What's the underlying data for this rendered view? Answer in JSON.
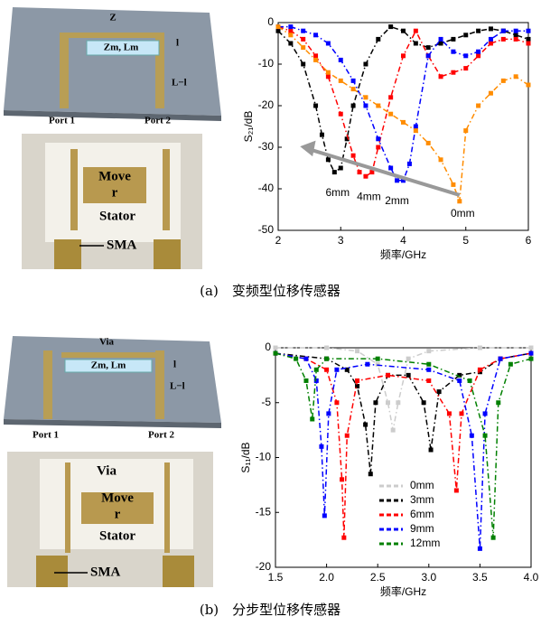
{
  "panels": [
    {
      "layout_labels": [
        "Z",
        "Zm, Lm",
        "l",
        "L−l",
        "Port 1",
        "Port 2"
      ],
      "photo_labels": [
        "Move",
        "r",
        "Stator",
        "SMA"
      ]
    },
    {
      "layout_labels": [
        "Via",
        "Zm, Lm",
        "l",
        "L−l",
        "Port 1",
        "Port 2"
      ],
      "photo_labels": [
        "Via",
        "Move",
        "r",
        "Stator",
        "SMA"
      ]
    }
  ],
  "captions": [
    "(a)　变频型位移传感器",
    "(b)　分步型位移传感器"
  ],
  "chart_data": [
    {
      "type": "line",
      "xlabel": "频率/GHz",
      "ylabel": "S₂₁/dB",
      "xlim": [
        2,
        6
      ],
      "ylim": [
        -50,
        0
      ],
      "xticks": [
        2,
        3,
        4,
        5,
        6
      ],
      "yticks": [
        0,
        -10,
        -20,
        -30,
        -40,
        -50
      ],
      "frame": true,
      "legend": false,
      "markers": "square",
      "line_style": "dash-dot",
      "annotations": [
        "6mm",
        "4mm",
        "2mm",
        "0mm"
      ],
      "series": [
        {
          "color": "#000000",
          "x": [
            2,
            2.2,
            2.4,
            2.6,
            2.7,
            2.8,
            2.9,
            3.0,
            3.1,
            3.2,
            3.4,
            3.6,
            3.8,
            4.0,
            4.2,
            4.4,
            4.6,
            4.8,
            5.0,
            5.2,
            5.4,
            5.6,
            5.8,
            6.0
          ],
          "values": [
            -2,
            -5,
            -10,
            -20,
            -27,
            -33,
            -36,
            -35,
            -28,
            -20,
            -10,
            -4,
            -1,
            -2,
            -5,
            -6,
            -5,
            -4,
            -3,
            -2,
            -1.5,
            -2,
            -3,
            -4
          ]
        },
        {
          "color": "#ff0000",
          "x": [
            2,
            2.2,
            2.4,
            2.6,
            2.8,
            3.0,
            3.2,
            3.3,
            3.4,
            3.5,
            3.6,
            3.8,
            4.0,
            4.2,
            4.4,
            4.6,
            4.8,
            5.0,
            5.2,
            5.4,
            5.6,
            5.8,
            6.0
          ],
          "values": [
            -1,
            -2,
            -4,
            -8,
            -13,
            -22,
            -32,
            -36,
            -37,
            -36,
            -30,
            -18,
            -8,
            -2,
            -8,
            -13,
            -12,
            -11,
            -8,
            -5,
            -4,
            -4,
            -5
          ]
        },
        {
          "color": "#0000ff",
          "x": [
            2,
            2.2,
            2.4,
            2.6,
            2.8,
            3.0,
            3.2,
            3.4,
            3.6,
            3.8,
            3.9,
            4.0,
            4.1,
            4.2,
            4.4,
            4.6,
            4.8,
            5.0,
            5.2,
            5.4,
            5.6,
            5.8,
            6.0
          ],
          "values": [
            -1,
            -1,
            -2,
            -3,
            -5,
            -9,
            -14,
            -20,
            -28,
            -35,
            -38,
            -38,
            -34,
            -25,
            -8,
            -4,
            -7,
            -8,
            -7,
            -4,
            -2,
            -2,
            -2
          ]
        },
        {
          "color": "#ff8c00",
          "x": [
            2,
            2.2,
            2.4,
            2.6,
            2.8,
            3.0,
            3.2,
            3.4,
            3.6,
            3.8,
            4.0,
            4.2,
            4.4,
            4.6,
            4.8,
            4.9,
            5.0,
            5.2,
            5.4,
            5.6,
            5.8,
            6.0
          ],
          "values": [
            -1,
            -3,
            -6,
            -9,
            -12,
            -14,
            -16,
            -18,
            -20,
            -22,
            -24,
            -26,
            -29,
            -33,
            -39,
            -43,
            -26,
            -20,
            -17,
            -14,
            -13,
            -15
          ]
        }
      ]
    },
    {
      "type": "line",
      "xlabel": "频率/GHz",
      "ylabel": "S₁₁/dB",
      "xlim": [
        1.5,
        4.0
      ],
      "ylim": [
        -20,
        0
      ],
      "xticks": [
        1.5,
        {
          "value": 2,
          "label": "2.0"
        },
        2.5,
        {
          "value": 3,
          "label": "3.0"
        },
        3.5,
        {
          "value": 4,
          "label": "4.0"
        }
      ],
      "yticks": [
        0,
        -5,
        -10,
        -15,
        -20
      ],
      "frame": true,
      "legend": true,
      "markers": "square",
      "line_style": "dash-dot",
      "series": [
        {
          "name": "0mm",
          "color": "#cccccc",
          "x": [
            1.5,
            2.0,
            2.3,
            2.5,
            2.6,
            2.65,
            2.7,
            2.8,
            3.0,
            3.5,
            4.0
          ],
          "values": [
            0,
            0,
            -0.3,
            -1.5,
            -5,
            -7.5,
            -5,
            -1,
            -0.3,
            0,
            0
          ]
        },
        {
          "name": "3mm",
          "color": "#000000",
          "x": [
            1.5,
            2.0,
            2.2,
            2.3,
            2.38,
            2.43,
            2.48,
            2.6,
            2.8,
            2.95,
            3.02,
            3.1,
            3.3,
            3.5,
            3.7,
            4.0
          ],
          "values": [
            -0.5,
            -1,
            -2,
            -3.5,
            -7,
            -11.5,
            -5,
            -2.5,
            -2.5,
            -5,
            -9.3,
            -4,
            -2.5,
            -2.2,
            -1,
            -0.5
          ]
        },
        {
          "name": "6mm",
          "color": "#ff0000",
          "x": [
            1.5,
            1.8,
            2.0,
            2.1,
            2.15,
            2.17,
            2.2,
            2.3,
            2.6,
            3.0,
            3.2,
            3.27,
            3.32,
            3.5,
            3.7,
            4.0
          ],
          "values": [
            -0.5,
            -1,
            -2,
            -5,
            -12,
            -17.3,
            -8,
            -3,
            -2.5,
            -3,
            -6,
            -13,
            -6,
            -2,
            -1,
            -0.5
          ]
        },
        {
          "name": "9mm",
          "color": "#0000ff",
          "x": [
            1.5,
            1.8,
            1.9,
            1.95,
            1.98,
            2.02,
            2.1,
            2.4,
            3.0,
            3.3,
            3.42,
            3.5,
            3.55,
            3.7,
            4.0
          ],
          "values": [
            -0.5,
            -1,
            -3,
            -9,
            -15.3,
            -6,
            -2,
            -1.5,
            -2,
            -3,
            -8,
            -18.3,
            -6,
            -1,
            -0.5
          ]
        },
        {
          "name": "12mm",
          "color": "#008000",
          "x": [
            1.5,
            1.7,
            1.8,
            1.86,
            1.9,
            2.0,
            2.5,
            3.0,
            3.4,
            3.55,
            3.63,
            3.68,
            3.8,
            4.0
          ],
          "values": [
            -0.5,
            -1,
            -3,
            -6.5,
            -2,
            -1,
            -1,
            -1.5,
            -3,
            -8,
            -17.3,
            -5,
            -1.5,
            -1
          ]
        }
      ]
    }
  ]
}
